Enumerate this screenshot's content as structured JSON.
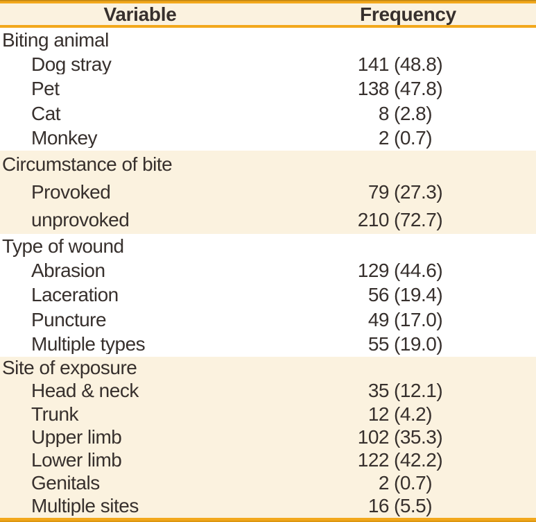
{
  "table": {
    "columns": {
      "variable": "Variable",
      "frequency": "Frequency"
    },
    "sections": [
      {
        "label": "Biting animal",
        "highlighted": false,
        "rows": [
          {
            "label": "Dog stray",
            "count": "141",
            "pct": "(48.8)"
          },
          {
            "label": "Pet",
            "count": "138",
            "pct": "(47.8)"
          },
          {
            "label": "Cat",
            "count": "8",
            "pct": "(2.8)"
          },
          {
            "label": "Monkey",
            "count": "2",
            "pct": "(0.7)"
          }
        ]
      },
      {
        "label": "Circumstance of bite",
        "highlighted": true,
        "rows": [
          {
            "label": "Provoked",
            "count": "79",
            "pct": "(27.3)"
          },
          {
            "label": "unprovoked",
            "count": "210",
            "pct": "(72.7)"
          }
        ]
      },
      {
        "label": "Type of wound",
        "highlighted": false,
        "rows": [
          {
            "label": "Abrasion",
            "count": "129",
            "pct": "(44.6)"
          },
          {
            "label": "Laceration",
            "count": "56",
            "pct": "(19.4)"
          },
          {
            "label": "Puncture",
            "count": "49",
            "pct": "(17.0)"
          },
          {
            "label": "Multiple types",
            "count": "55",
            "pct": "(19.0)"
          }
        ]
      },
      {
        "label": "Site of exposure",
        "highlighted": true,
        "rows": [
          {
            "label": "Head & neck",
            "count": "35",
            "pct": "(12.1)"
          },
          {
            "label": "Trunk",
            "count": "12",
            "pct": "(4.2)"
          },
          {
            "label": "Upper limb",
            "count": "102",
            "pct": "(35.3)"
          },
          {
            "label": "Lower limb",
            "count": "122",
            "pct": "(42.2)"
          },
          {
            "label": "Genitals",
            "count": "2",
            "pct": "(0.7)"
          },
          {
            "label": "Multiple sites",
            "count": "16",
            "pct": "(5.5)"
          }
        ]
      }
    ],
    "colors": {
      "accent_gold": "#f2a81c",
      "band_cream": "#fbf2df",
      "text": "#37302d"
    }
  }
}
